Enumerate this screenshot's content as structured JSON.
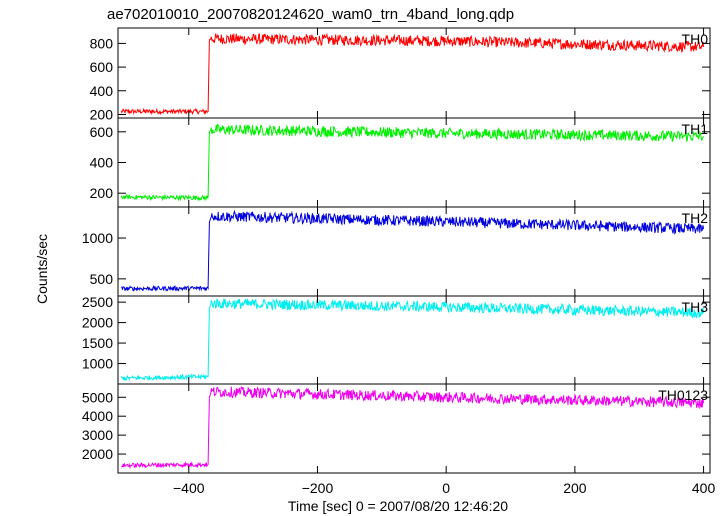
{
  "chart_data": {
    "type": "line",
    "title": "ae702010010_20070820124620_wam0_trn_4band_long.qdp",
    "xlabel": "Time [sec] 0 = 2007/08/20 12:46:20",
    "ylabel": "Counts/sec",
    "xlim": [
      -510,
      410
    ],
    "x_ticks": [
      -400,
      -200,
      0,
      200,
      400
    ],
    "x_tick_labels": [
      "−400",
      "−200",
      "0",
      "200",
      "400"
    ],
    "grid": false,
    "series": [
      {
        "name": "TH0",
        "color": "#ff0000",
        "ylim": [
          170,
          930
        ],
        "y_ticks": [
          200,
          400,
          600,
          800
        ],
        "x": [
          -505,
          -370,
          -368,
          -365,
          0,
          400
        ],
        "values": [
          225,
          225,
          830,
          840,
          820,
          770
        ]
      },
      {
        "name": "TH1",
        "color": "#00ee00",
        "ylim": [
          110,
          690
        ],
        "y_ticks": [
          200,
          400,
          600
        ],
        "x": [
          -505,
          -370,
          -368,
          -365,
          0,
          400
        ],
        "values": [
          175,
          170,
          600,
          615,
          590,
          570
        ]
      },
      {
        "name": "TH2",
        "color": "#0000dd",
        "ylim": [
          290,
          1380
        ],
        "y_ticks": [
          500,
          1000
        ],
        "x": [
          -505,
          -370,
          -368,
          -365,
          0,
          400
        ],
        "values": [
          380,
          385,
          1190,
          1270,
          1200,
          1110
        ]
      },
      {
        "name": "TH3",
        "color": "#00eeee",
        "ylim": [
          500,
          2650
        ],
        "y_ticks": [
          1000,
          1500,
          2000,
          2500
        ],
        "x": [
          -505,
          -370,
          -368,
          -365,
          0,
          400
        ],
        "values": [
          640,
          680,
          2350,
          2470,
          2380,
          2240
        ]
      },
      {
        "name": "TH0123",
        "color": "#ee00ee",
        "ylim": [
          1000,
          5700
        ],
        "y_ticks": [
          2000,
          3000,
          4000,
          5000
        ],
        "x": [
          -505,
          -370,
          -368,
          -365,
          0,
          400
        ],
        "values": [
          1400,
          1450,
          5000,
          5300,
          5000,
          4700
        ]
      }
    ]
  }
}
